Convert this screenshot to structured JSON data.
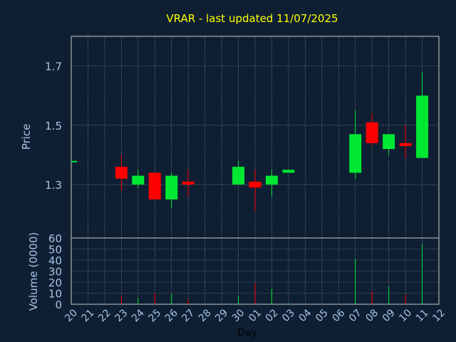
{
  "chart_data": [
    {
      "type": "candlestick",
      "title": "VRAR - last updated 11/07/2025",
      "ylabel": "Price",
      "xlabel": "Day",
      "x_ticks": [
        "20",
        "21",
        "22",
        "23",
        "24",
        "25",
        "26",
        "27",
        "28",
        "29",
        "30",
        "01",
        "02",
        "03",
        "04",
        "05",
        "06",
        "07",
        "08",
        "09",
        "10",
        "11",
        "12"
      ],
      "ylim": [
        1.12,
        1.8
      ],
      "y_ticks": [
        1.3,
        1.5,
        1.7
      ],
      "grid": true,
      "candles": [
        {
          "day": "20",
          "open": 1.38,
          "high": 1.38,
          "low": 1.38,
          "close": 1.38
        },
        {
          "day": "23",
          "open": 1.36,
          "high": 1.4,
          "low": 1.28,
          "close": 1.32
        },
        {
          "day": "24",
          "open": 1.3,
          "high": 1.35,
          "low": 1.29,
          "close": 1.33
        },
        {
          "day": "25",
          "open": 1.34,
          "high": 1.34,
          "low": 1.25,
          "close": 1.25
        },
        {
          "day": "26",
          "open": 1.25,
          "high": 1.34,
          "low": 1.22,
          "close": 1.33
        },
        {
          "day": "27",
          "open": 1.31,
          "high": 1.35,
          "low": 1.26,
          "close": 1.3
        },
        {
          "day": "30",
          "open": 1.3,
          "high": 1.38,
          "low": 1.3,
          "close": 1.36
        },
        {
          "day": "01",
          "open": 1.31,
          "high": 1.35,
          "low": 1.21,
          "close": 1.29
        },
        {
          "day": "02",
          "open": 1.3,
          "high": 1.35,
          "low": 1.26,
          "close": 1.33
        },
        {
          "day": "03",
          "open": 1.34,
          "high": 1.35,
          "low": 1.34,
          "close": 1.35
        },
        {
          "day": "07",
          "open": 1.34,
          "high": 1.55,
          "low": 1.32,
          "close": 1.47
        },
        {
          "day": "08",
          "open": 1.51,
          "high": 1.54,
          "low": 1.43,
          "close": 1.44
        },
        {
          "day": "09",
          "open": 1.42,
          "high": 1.47,
          "low": 1.4,
          "close": 1.47
        },
        {
          "day": "10",
          "open": 1.44,
          "high": 1.5,
          "low": 1.39,
          "close": 1.43
        },
        {
          "day": "11",
          "open": 1.39,
          "high": 1.68,
          "low": 1.39,
          "close": 1.6
        }
      ],
      "colors": {
        "up": "#00e832",
        "down": "#ff0000",
        "background": "#0f1f33",
        "grid": "#ffffff",
        "text": "#a6c4e6",
        "title": "#ffff00"
      }
    },
    {
      "type": "bar",
      "ylabel": "Volume (0000)",
      "ylim": [
        0,
        60
      ],
      "y_ticks": [
        0,
        10,
        20,
        30,
        40,
        50,
        60
      ],
      "grid": true,
      "bars": [
        {
          "day": "23",
          "value": 8,
          "direction": "down"
        },
        {
          "day": "24",
          "value": 6,
          "direction": "up"
        },
        {
          "day": "25",
          "value": 10,
          "direction": "down"
        },
        {
          "day": "26",
          "value": 9,
          "direction": "up"
        },
        {
          "day": "27",
          "value": 5,
          "direction": "down"
        },
        {
          "day": "30",
          "value": 8,
          "direction": "up"
        },
        {
          "day": "01",
          "value": 19,
          "direction": "down"
        },
        {
          "day": "02",
          "value": 14,
          "direction": "up"
        },
        {
          "day": "03",
          "value": 1,
          "direction": "up"
        },
        {
          "day": "07",
          "value": 41,
          "direction": "up"
        },
        {
          "day": "08",
          "value": 12,
          "direction": "down"
        },
        {
          "day": "09",
          "value": 16,
          "direction": "up"
        },
        {
          "day": "10",
          "value": 9,
          "direction": "down"
        },
        {
          "day": "11",
          "value": 55,
          "direction": "up"
        }
      ]
    }
  ]
}
